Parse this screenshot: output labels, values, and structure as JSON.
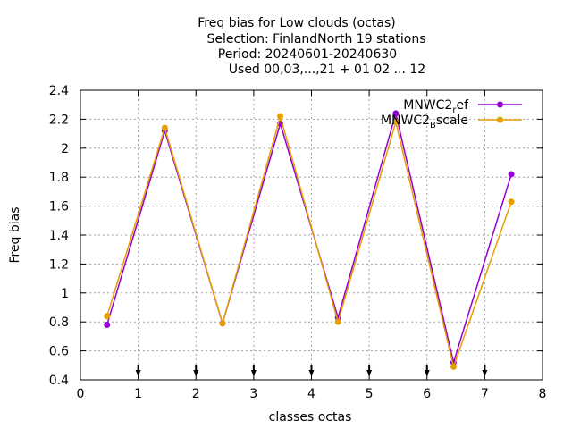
{
  "chart_data": {
    "type": "line",
    "title_lines": [
      "Freq bias  for Low clouds (octas)",
      "Selection: FinlandNorth     19 stations",
      "Period: 20240601-20240630",
      "Used 00,03,...,21 + 01 02 ... 12"
    ],
    "xlabel": "classes octas",
    "ylabel": "Freq bias",
    "xlim": [
      0,
      8
    ],
    "ylim": [
      0.4,
      2.4
    ],
    "xticks": [
      "0",
      "1",
      "2",
      "3",
      "4",
      "5",
      "6",
      "7",
      "8"
    ],
    "yticks": [
      "0.4",
      "0.6",
      "0.8",
      "1",
      "1.2",
      "1.4",
      "1.6",
      "1.8",
      "2",
      "2.2",
      "2.4"
    ],
    "grid": true,
    "legend_position": "top-right",
    "x": [
      0.46,
      1.46,
      2.46,
      3.46,
      4.46,
      5.46,
      6.46,
      7.46
    ],
    "series": [
      {
        "name_base": "MNWC2",
        "name_sub": "r",
        "name_rest": "ef",
        "color": "#9400d3",
        "values": [
          0.78,
          2.12,
          0.79,
          2.17,
          0.83,
          2.24,
          0.52,
          1.82
        ]
      },
      {
        "name_base": "MNWC2",
        "name_sub": "B",
        "name_rest": "scale",
        "color": "#e69f00",
        "values": [
          0.84,
          2.14,
          0.79,
          2.22,
          0.8,
          2.18,
          0.49,
          1.63
        ]
      }
    ],
    "markers_x": [
      1,
      2,
      3,
      4,
      5,
      6,
      7
    ]
  }
}
